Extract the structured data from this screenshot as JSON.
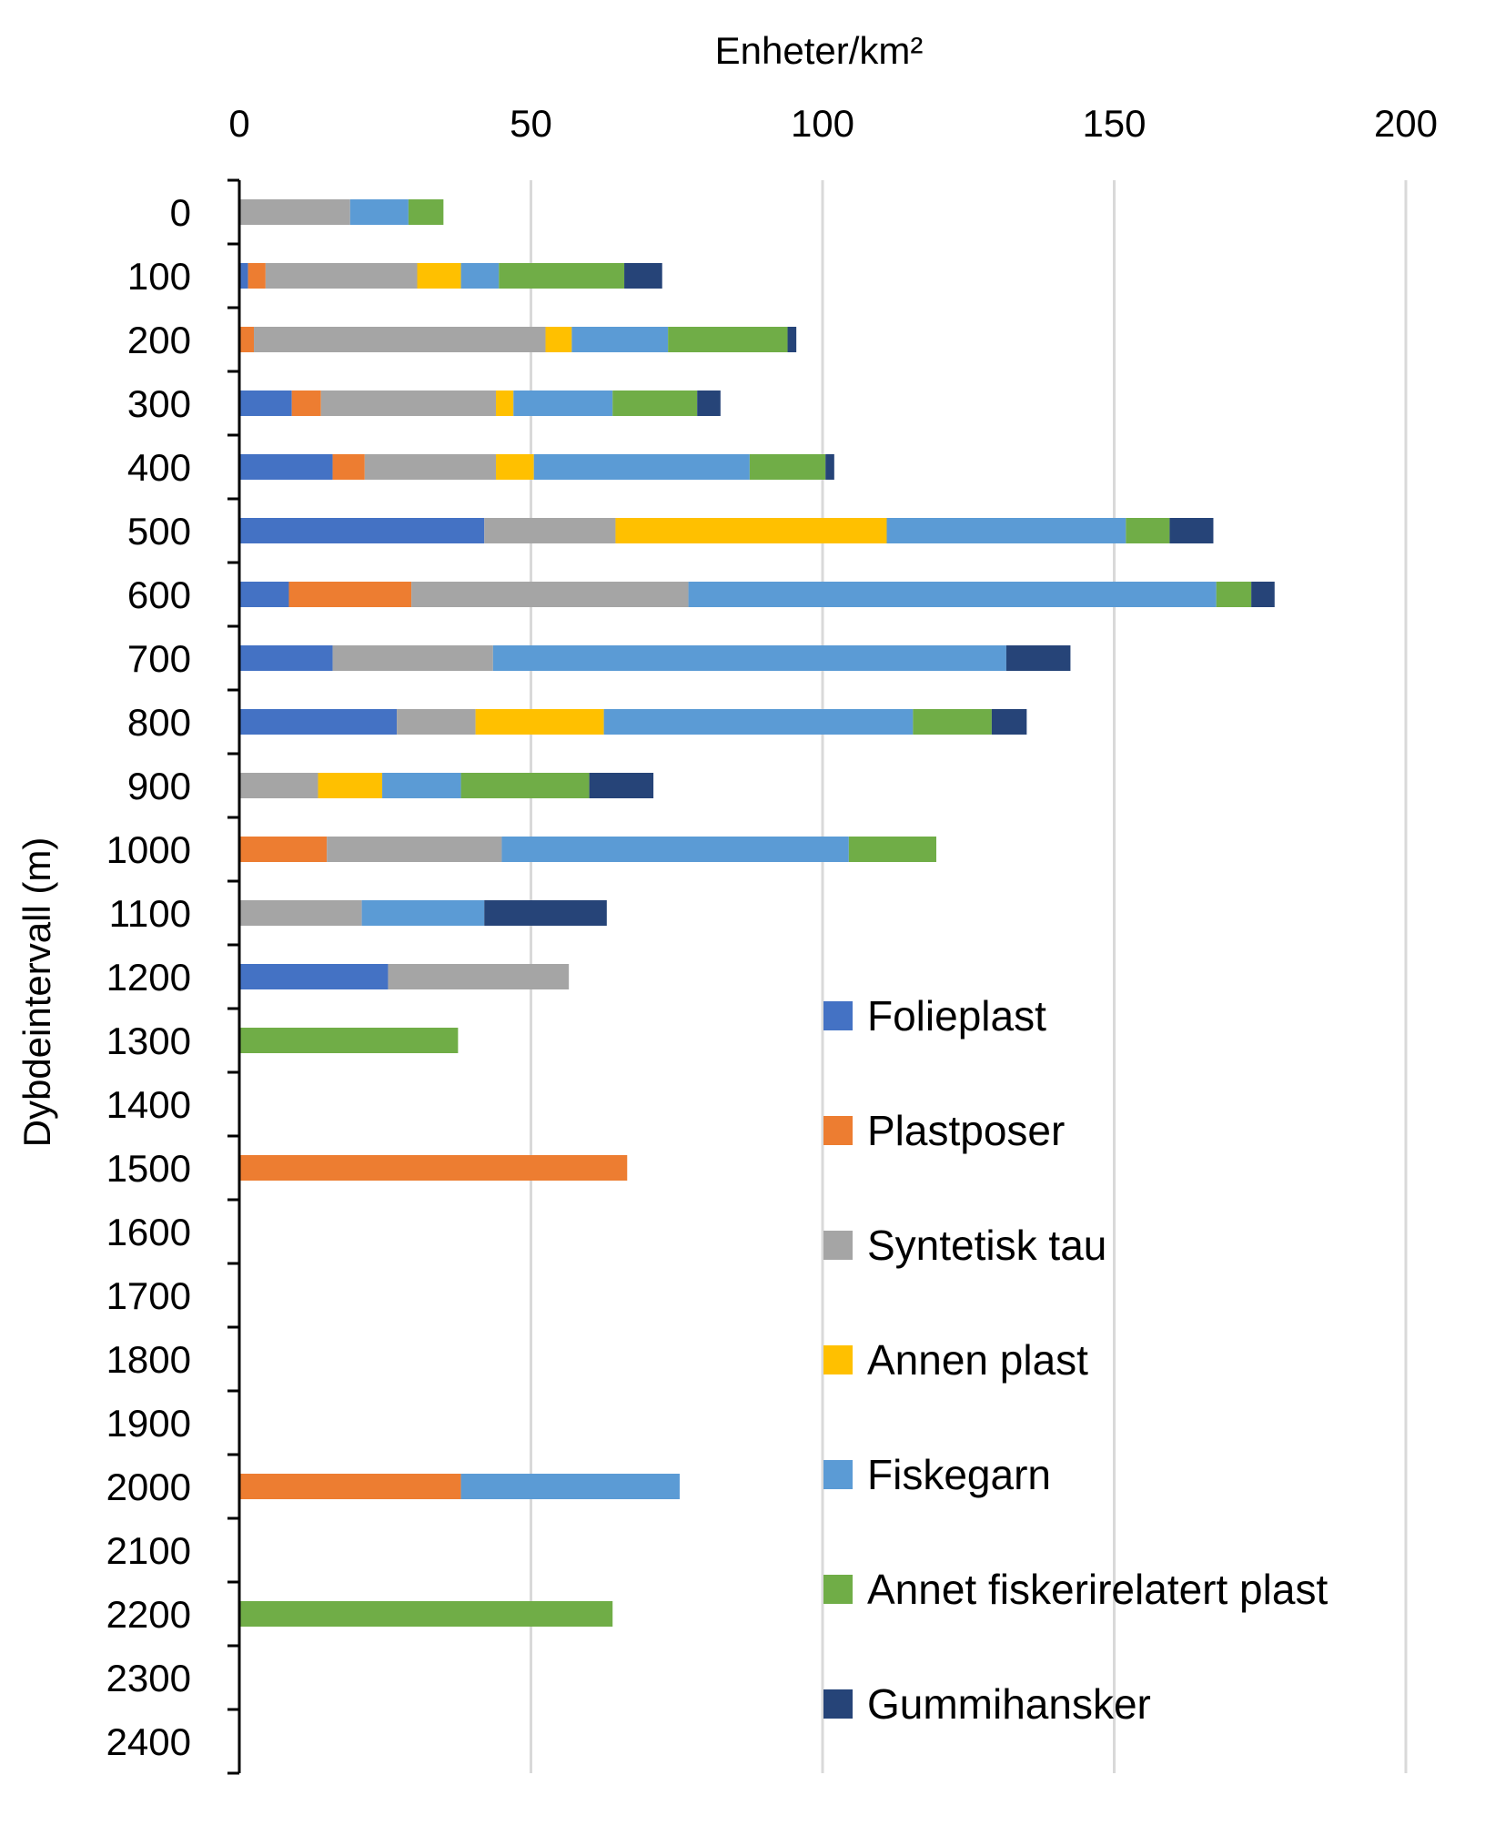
{
  "chart_data": {
    "type": "bar",
    "orientation": "horizontal",
    "stacked": true,
    "title": "",
    "xlabel": "Enheter/km²",
    "ylabel": "Dybdeintervall (m)",
    "xlim": [
      0,
      200
    ],
    "xticks": [
      "0",
      "50",
      "100",
      "150",
      "200"
    ],
    "categories": [
      "0",
      "100",
      "200",
      "300",
      "400",
      "500",
      "600",
      "700",
      "800",
      "900",
      "1000",
      "1100",
      "1200",
      "1300",
      "1400",
      "1500",
      "1600",
      "1700",
      "1800",
      "1900",
      "2000",
      "2100",
      "2200",
      "2300",
      "2400"
    ],
    "grid": "vertical",
    "legend_position": "bottom-right",
    "series": [
      {
        "name": "Folieplast",
        "color": "#4472C4",
        "values": [
          0,
          1.5,
          0,
          9,
          16,
          42,
          8.5,
          16,
          27,
          0,
          0,
          0,
          25.5,
          0,
          0,
          0,
          0,
          0,
          0,
          0,
          0,
          0,
          0,
          0,
          0
        ]
      },
      {
        "name": "Plastposer",
        "color": "#ED7D31",
        "values": [
          0,
          3,
          2.5,
          5,
          5.5,
          0,
          21,
          0,
          0,
          0,
          15,
          0,
          0,
          0,
          0,
          66.5,
          0,
          0,
          0,
          0,
          38,
          0,
          0,
          0,
          0
        ]
      },
      {
        "name": "Syntetisk tau",
        "color": "#A5A5A5",
        "values": [
          19,
          26,
          50,
          30,
          22.5,
          22.5,
          47.5,
          27.5,
          13.5,
          13.5,
          30,
          21,
          31,
          0,
          0,
          0,
          0,
          0,
          0,
          0,
          0,
          0,
          0,
          0,
          0
        ]
      },
      {
        "name": "Annen plast",
        "color": "#FFC000",
        "values": [
          0,
          7.5,
          4.5,
          3,
          6.5,
          46.5,
          0,
          0,
          22,
          11,
          0,
          0,
          0,
          0,
          0,
          0,
          0,
          0,
          0,
          0,
          0,
          0,
          0,
          0,
          0
        ]
      },
      {
        "name": "Fiskegarn",
        "color": "#5B9BD5",
        "values": [
          10,
          6.5,
          16.5,
          17,
          37,
          41,
          90.5,
          88,
          53,
          13.5,
          59.5,
          21,
          0,
          0,
          0,
          0,
          0,
          0,
          0,
          0,
          37.5,
          0,
          0,
          0,
          0
        ]
      },
      {
        "name": "Annet fiskerirelatert plast",
        "color": "#70AD47",
        "values": [
          6,
          21.5,
          20.5,
          14.5,
          13,
          7.5,
          6,
          0,
          13.5,
          22,
          15,
          0,
          0,
          37.5,
          0,
          0,
          0,
          0,
          0,
          0,
          0,
          0,
          64,
          0,
          0
        ]
      },
      {
        "name": "Gummihansker",
        "color": "#264478",
        "values": [
          0,
          6.5,
          1.5,
          4,
          1.5,
          7.5,
          4,
          11,
          6,
          11,
          0,
          21,
          0,
          0,
          0,
          0,
          0,
          0,
          0,
          0,
          0,
          0,
          0,
          0,
          0
        ]
      }
    ]
  }
}
